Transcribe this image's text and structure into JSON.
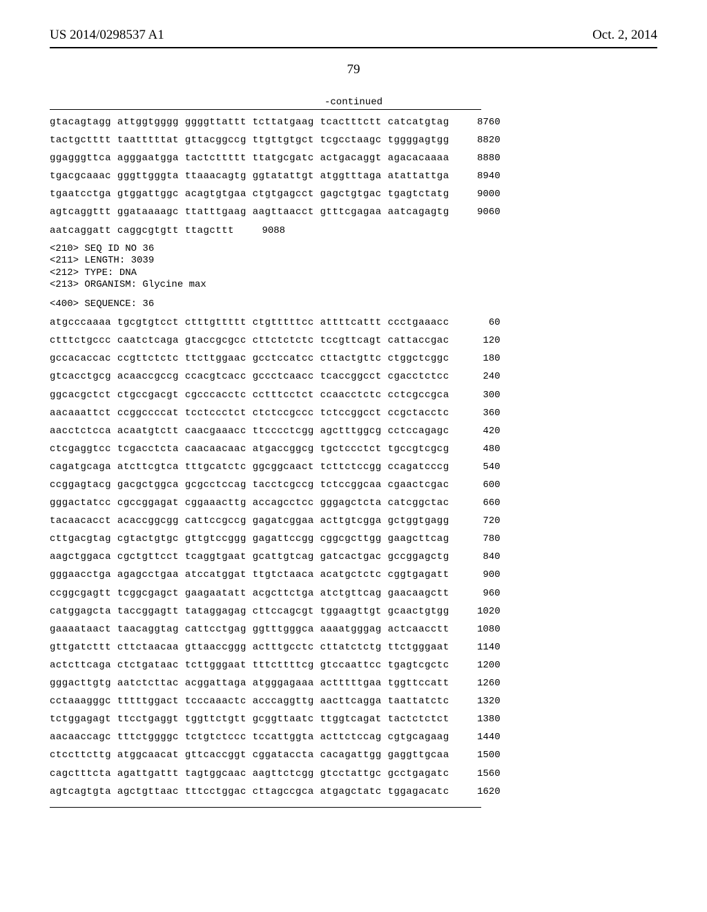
{
  "header": {
    "left": "US 2014/0298537 A1",
    "right": "Oct. 2, 2014"
  },
  "page_number": "79",
  "continued_label": "-continued",
  "seq_block_1": [
    {
      "seq": "gtacagtagg attggtgggg ggggttattt tcttatgaag tcactttctt catcatgtag",
      "n": "8760"
    },
    {
      "seq": "tactgctttt taatttttat gttacggccg ttgttgtgct tcgcctaagc tggggagtgg",
      "n": "8820"
    },
    {
      "seq": "ggagggttca agggaatgga tactcttttt ttatgcgatc actgacaggt agacacaaaa",
      "n": "8880"
    },
    {
      "seq": "tgacgcaaac gggttgggta ttaaacagtg ggtatattgt atggtttaga atattattga",
      "n": "8940"
    },
    {
      "seq": "tgaatcctga gtggattggc acagtgtgaa ctgtgagcct gagctgtgac tgagtctatg",
      "n": "9000"
    },
    {
      "seq": "agtcaggttt ggataaaagc ttatttgaag aagttaacct gtttcgagaa aatcagagtg",
      "n": "9060"
    },
    {
      "seq": "aatcaggatt caggcgtgtt ttagcttt",
      "n": "9088"
    }
  ],
  "meta": [
    "<210> SEQ ID NO 36",
    "<211> LENGTH: 3039",
    "<212> TYPE: DNA",
    "<213> ORGANISM: Glycine max"
  ],
  "sequence_label": "<400> SEQUENCE: 36",
  "seq_block_2": [
    {
      "seq": "atgcccaaaa tgcgtgtcct ctttgttttt ctgtttttcc attttcattt ccctgaaacc",
      "n": "60"
    },
    {
      "seq": "ctttctgccc caatctcaga gtaccgcgcc cttctctctc tccgttcagt cattaccgac",
      "n": "120"
    },
    {
      "seq": "gccacaccac ccgttctctc ttcttggaac gcctccatcc cttactgttc ctggctcggc",
      "n": "180"
    },
    {
      "seq": "gtcacctgcg acaaccgccg ccacgtcacc gccctcaacc tcaccggcct cgacctctcc",
      "n": "240"
    },
    {
      "seq": "ggcacgctct ctgccgacgt cgcccacctc cctttcctct ccaacctctc cctcgccgca",
      "n": "300"
    },
    {
      "seq": "aacaaattct ccggccccat tcctccctct ctctccgccc tctccggcct ccgctacctc",
      "n": "360"
    },
    {
      "seq": "aacctctcca acaatgtctt caacgaaacc ttcccctcgg agctttggcg cctccagagc",
      "n": "420"
    },
    {
      "seq": "ctcgaggtcc tcgacctcta caacaacaac atgaccggcg tgctccctct tgccgtcgcg",
      "n": "480"
    },
    {
      "seq": "cagatgcaga atcttcgtca tttgcatctc ggcggcaact tcttctccgg ccagatcccg",
      "n": "540"
    },
    {
      "seq": "ccggagtacg gacgctggca gcgcctccag tacctcgccg tctccggcaa cgaactcgac",
      "n": "600"
    },
    {
      "seq": "gggactatcc cgccggagat cggaaacttg accagcctcc gggagctcta catcggctac",
      "n": "660"
    },
    {
      "seq": "tacaacacct acaccggcgg cattccgccg gagatcggaa acttgtcgga gctggtgagg",
      "n": "720"
    },
    {
      "seq": "cttgacgtag cgtactgtgc gttgtccggg gagattccgg cggcgcttgg gaagcttcag",
      "n": "780"
    },
    {
      "seq": "aagctggaca cgctgttcct tcaggtgaat gcattgtcag gatcactgac gccggagctg",
      "n": "840"
    },
    {
      "seq": "gggaacctga agagcctgaa atccatggat ttgtctaaca acatgctctc cggtgagatt",
      "n": "900"
    },
    {
      "seq": "ccggcgagtt tcggcgagct gaagaatatt acgcttctga atctgttcag gaacaagctt",
      "n": "960"
    },
    {
      "seq": "catggagcta taccggagtt tataggagag cttccagcgt tggaagttgt gcaactgtgg",
      "n": "1020"
    },
    {
      "seq": "gaaaataact taacaggtag cattcctgag ggtttgggca aaaatgggag actcaacctt",
      "n": "1080"
    },
    {
      "seq": "gttgatcttt cttctaacaa gttaaccggg actttgcctc cttatctctg ttctgggaat",
      "n": "1140"
    },
    {
      "seq": "actcttcaga ctctgataac tcttgggaat tttcttttcg gtccaattcc tgagtcgctc",
      "n": "1200"
    },
    {
      "seq": "gggacttgtg aatctcttac acggattaga atgggagaaa actttttgaa tggttccatt",
      "n": "1260"
    },
    {
      "seq": "cctaaagggc tttttggact tcccaaactc acccaggttg aacttcagga taattatctc",
      "n": "1320"
    },
    {
      "seq": "tctggagagt ttcctgaggt tggttctgtt gcggttaatc ttggtcagat tactctctct",
      "n": "1380"
    },
    {
      "seq": "aacaaccagc tttctggggc tctgtctccc tccattggta acttctccag cgtgcagaag",
      "n": "1440"
    },
    {
      "seq": "ctccttcttg atggcaacat gttcaccggt cggataccta cacagattgg gaggttgcaa",
      "n": "1500"
    },
    {
      "seq": "cagctttcta agattgattt tagtggcaac aagttctcgg gtcctattgc gcctgagatc",
      "n": "1560"
    },
    {
      "seq": "agtcagtgta agctgttaac tttcctggac cttagccgca atgagctatc tggagacatc",
      "n": "1620"
    }
  ]
}
